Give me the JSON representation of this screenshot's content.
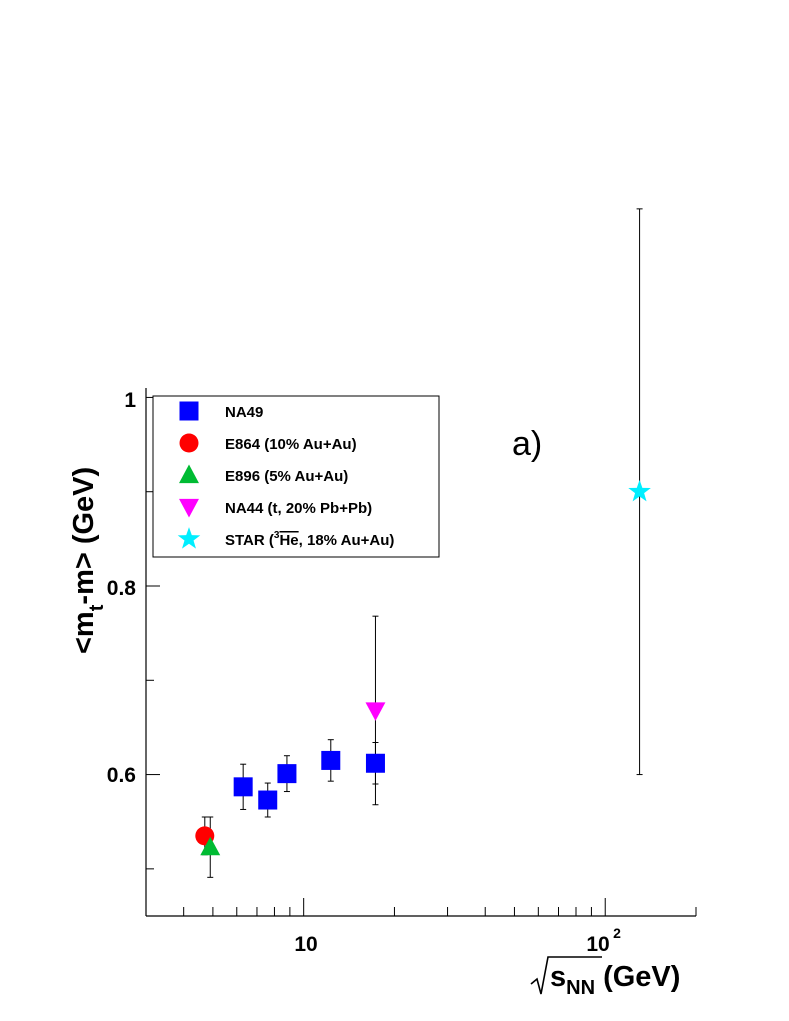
{
  "chart_data": {
    "type": "scatter",
    "title": "",
    "annotation": "a)",
    "ylabel": {
      "open": "<m",
      "sub": "t",
      "rest": "-m> (GeV)"
    },
    "xlabel": {
      "s": "s",
      "sub": "NN",
      "rest": " (GeV)"
    },
    "xscale": "log",
    "xlim": [
      3.0,
      200.0
    ],
    "ylim": [
      0.45,
      1.01
    ],
    "x_tick_labels": {
      "ten": "10",
      "hundred_base": "10",
      "hundred_exp": "2"
    },
    "y_tick_labels": [
      "0.6",
      "0.8",
      "1"
    ],
    "legend_position": "top-left",
    "series": [
      {
        "name": "NA49",
        "marker": "square",
        "color": "#0000ff",
        "points": [
          {
            "x": 6.3,
            "y": 0.587,
            "err": 0.024
          },
          {
            "x": 7.6,
            "y": 0.573,
            "err": 0.018
          },
          {
            "x": 8.8,
            "y": 0.601,
            "err": 0.019
          },
          {
            "x": 12.3,
            "y": 0.615,
            "err": 0.022
          },
          {
            "x": 17.3,
            "y": 0.612,
            "err": 0.022
          }
        ]
      },
      {
        "name": "E864 (10% Au+Au)",
        "marker": "circle",
        "color": "#ff0000",
        "points": [
          {
            "x": 4.7,
            "y": 0.535,
            "err": 0.02
          }
        ]
      },
      {
        "name": "E896 (5% Au+Au)",
        "marker": "triangle-up",
        "color": "#00bb33",
        "points": [
          {
            "x": 4.9,
            "y": 0.523,
            "err": 0.032
          }
        ]
      },
      {
        "name": "NA44 (t, 20% Pb+Pb)",
        "marker": "triangle-down",
        "color": "#ff00ff",
        "points": [
          {
            "x": 17.3,
            "y": 0.668,
            "err": 0.1
          }
        ]
      },
      {
        "name": "STAR",
        "legend_parts": {
          "pre": "STAR (",
          "sup": "3",
          "over": "He",
          "post": ", 18% Au+Au)"
        },
        "marker": "star",
        "color": "#00eeff",
        "points": [
          {
            "x": 130,
            "y": 0.9,
            "err": 0.3
          }
        ]
      }
    ]
  }
}
